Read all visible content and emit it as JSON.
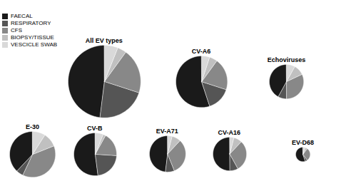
{
  "chart_data": [
    {
      "type": "pie",
      "title": "All EV types",
      "categories": [
        "FAECAL",
        "RESPIRATORY",
        "CFS",
        "BIOPSY/TISSUE",
        "VESCICLE SWAB"
      ],
      "values": [
        48,
        22,
        20,
        4,
        6
      ],
      "colors": [
        "#1a1a1a",
        "#555555",
        "#888888",
        "#c0c0c0",
        "#d9d9d9"
      ],
      "legend": "upper left"
    },
    {
      "type": "pie",
      "title": "CV-A6",
      "categories": [
        "FAECAL",
        "RESPIRATORY",
        "CFS",
        "BIOPSY/TISSUE",
        "VESCICLE SWAB"
      ],
      "values": [
        55,
        15,
        20,
        5,
        5
      ],
      "colors": [
        "#1a1a1a",
        "#555555",
        "#888888",
        "#c0c0c0",
        "#d9d9d9"
      ]
    },
    {
      "type": "pie",
      "title": "Echoviruses",
      "categories": [
        "FAECAL",
        "RESPIRATORY",
        "CFS",
        "BIOPSY/TISSUE",
        "VESCICLE SWAB"
      ],
      "values": [
        42,
        8,
        32,
        10,
        8
      ],
      "colors": [
        "#1a1a1a",
        "#555555",
        "#888888",
        "#c0c0c0",
        "#d9d9d9"
      ]
    },
    {
      "type": "pie",
      "title": "E-30",
      "categories": [
        "FAECAL",
        "RESPIRATORY",
        "CFS",
        "BIOPSY/TISSUE",
        "VESCICLE SWAB"
      ],
      "values": [
        38,
        5,
        38,
        10,
        9
      ],
      "colors": [
        "#1a1a1a",
        "#555555",
        "#888888",
        "#c0c0c0",
        "#d9d9d9"
      ]
    },
    {
      "type": "pie",
      "title": "CV-B",
      "categories": [
        "FAECAL",
        "RESPIRATORY",
        "CFS",
        "BIOPSY/TISSUE",
        "VESCICLE SWAB"
      ],
      "values": [
        52,
        22,
        18,
        2,
        6
      ],
      "colors": [
        "#1a1a1a",
        "#555555",
        "#888888",
        "#c0c0c0",
        "#d9d9d9"
      ]
    },
    {
      "type": "pie",
      "title": "EV-A71",
      "categories": [
        "FAECAL",
        "RESPIRATORY",
        "CFS",
        "BIOPSY/TISSUE",
        "VESCICLE SWAB"
      ],
      "values": [
        48,
        8,
        32,
        8,
        4
      ],
      "colors": [
        "#1a1a1a",
        "#555555",
        "#888888",
        "#c0c0c0",
        "#d9d9d9"
      ]
    },
    {
      "type": "pie",
      "title": "CV-A16",
      "categories": [
        "FAECAL",
        "RESPIRATORY",
        "CFS",
        "BIOPSY/TISSUE",
        "VESCICLE SWAB"
      ],
      "values": [
        50,
        8,
        30,
        8,
        4
      ],
      "colors": [
        "#1a1a1a",
        "#555555",
        "#888888",
        "#c0c0c0",
        "#d9d9d9"
      ]
    },
    {
      "type": "pie",
      "title": "EV-D68",
      "categories": [
        "FAECAL",
        "RESPIRATORY",
        "CFS",
        "BIOPSY/TISSUE",
        "VESCICLE SWAB"
      ],
      "values": [
        55,
        5,
        30,
        5,
        5
      ],
      "colors": [
        "#1a1a1a",
        "#555555",
        "#888888",
        "#c0c0c0",
        "#d9d9d9"
      ]
    }
  ]
}
